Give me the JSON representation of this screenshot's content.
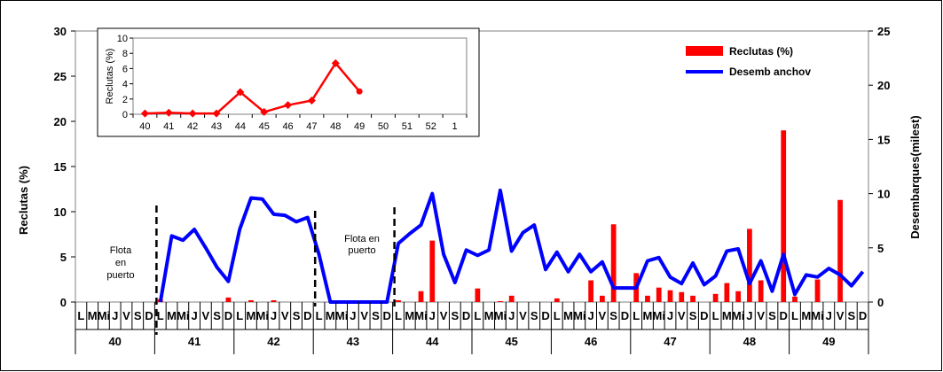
{
  "chart_data": [
    {
      "type": "bar+line",
      "ylabel": "Reclutas (%)",
      "y2label": "Desembarques(milest)",
      "ylim": [
        0,
        30
      ],
      "y2lim": [
        0,
        25
      ],
      "yticks": [
        "0",
        "5",
        "10",
        "15",
        "20",
        "25",
        "30"
      ],
      "y2ticks": [
        "0",
        "5",
        "10",
        "15",
        "20",
        "25"
      ],
      "day_labels": [
        "L",
        "M",
        "Mi",
        "J",
        "V",
        "S",
        "D"
      ],
      "weeks": [
        "40",
        "41",
        "42",
        "43",
        "44",
        "45",
        "46",
        "47",
        "48",
        "49"
      ],
      "annotations": [
        {
          "text": "Flota en puerto",
          "lines": [
            "Flota",
            "en",
            "puerto"
          ]
        },
        {
          "text": "Flota en puerto",
          "lines": [
            "Flota en",
            "puerto"
          ]
        }
      ],
      "series": [
        {
          "name": "Reclutas (%)",
          "type": "bar",
          "color": "#ff0000",
          "axis": "left",
          "values": [
            0,
            0,
            0,
            0,
            0,
            0,
            0,
            0.3,
            0,
            0,
            0,
            0,
            0,
            0.5,
            0,
            0.2,
            0,
            0.2,
            0,
            0,
            0,
            0,
            0,
            0,
            0,
            0,
            0,
            0,
            0.2,
            0,
            1.2,
            6.8,
            0,
            0,
            0,
            1.5,
            0,
            0.1,
            0.7,
            0,
            0,
            0,
            0.4,
            0,
            0,
            2.4,
            0.7,
            8.6,
            0,
            3.2,
            0.7,
            1.6,
            1.3,
            1.1,
            0.7,
            0,
            0.9,
            2.1,
            1.2,
            8.1,
            2.4,
            0,
            19,
            0.6,
            0,
            2.5,
            0,
            11.3,
            0,
            0
          ]
        },
        {
          "name": "Desemb anchov",
          "type": "line",
          "color": "#0000ff",
          "axis": "right",
          "values": [
            null,
            null,
            null,
            null,
            null,
            null,
            null,
            0,
            6.1,
            5.7,
            6.7,
            5,
            3.2,
            1.9,
            6.7,
            9.6,
            9.5,
            8.1,
            8,
            7.4,
            7.8,
            4.4,
            0,
            0,
            0,
            0,
            0,
            0,
            5.4,
            6.3,
            7.1,
            10,
            4.4,
            1.8,
            4.8,
            4.3,
            4.8,
            10.3,
            4.7,
            6.4,
            7.1,
            3,
            4.6,
            2.8,
            4.4,
            2.8,
            3.7,
            1.3,
            1.3,
            1.3,
            3.8,
            4.1,
            2.3,
            1.7,
            3.6,
            1.6,
            2.4,
            4.7,
            4.9,
            1.7,
            3.8,
            1,
            4.4,
            0.7,
            2.5,
            2.3,
            3.1,
            2.5,
            1.5,
            2.8
          ]
        }
      ],
      "legend": {
        "position": "top-right",
        "entries": [
          "Reclutas (%)",
          "Desemb anchov"
        ]
      }
    },
    {
      "type": "line",
      "ylabel": "Reclutas (%)",
      "ylim": [
        0,
        10
      ],
      "yticks": [
        "0",
        "2",
        "4",
        "6",
        "8",
        "10"
      ],
      "categories": [
        "40",
        "41",
        "42",
        "43",
        "44",
        "45",
        "46",
        "47",
        "48",
        "49",
        "50",
        "51",
        "52",
        "1"
      ],
      "series": [
        {
          "name": "Reclutas (%)",
          "color": "#ff0000",
          "values": [
            0.1,
            0.2,
            0.1,
            0.1,
            2.9,
            0.3,
            1.2,
            1.8,
            6.7,
            3.0,
            null,
            null,
            null,
            null
          ]
        }
      ]
    }
  ]
}
